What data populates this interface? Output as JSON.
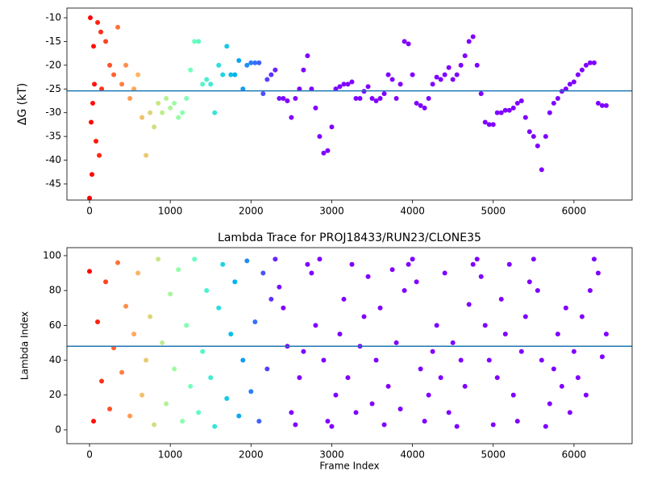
{
  "chart_data": [
    {
      "type": "scatter",
      "ylabel": "ΔG (kT)",
      "cmap": "rainbow_r",
      "clim": [
        0,
        2400
      ],
      "hline": -25.4,
      "hline_color": "#1f77b4",
      "xlim": [
        -280,
        6720
      ],
      "ylim": [
        -48.4,
        -7.96
      ],
      "xticks": [
        0,
        1000,
        2000,
        3000,
        4000,
        5000,
        6000
      ],
      "yticks": [
        -45,
        -40,
        -35,
        -30,
        -25,
        -20,
        -15,
        -10
      ],
      "x": [
        0,
        50,
        100,
        150,
        200,
        250,
        300,
        350,
        400,
        450,
        500,
        550,
        600,
        650,
        700,
        750,
        800,
        850,
        900,
        950,
        1000,
        1050,
        1100,
        1150,
        1200,
        1250,
        1300,
        1350,
        1400,
        1450,
        1500,
        1550,
        1600,
        1650,
        1700,
        1750,
        1800,
        1850,
        1900,
        1950,
        2000,
        2050,
        2100,
        2150,
        2200,
        2250,
        2300,
        2350,
        2400,
        2450,
        2500,
        2550,
        2600,
        2650,
        2700,
        2750,
        2800,
        2850,
        2900,
        2950,
        3000,
        3050,
        3100,
        3150,
        3200,
        3250,
        3300,
        3350,
        3400,
        3450,
        3500,
        3550,
        3600,
        3650,
        3700,
        3750,
        3800,
        3850,
        3900,
        3950,
        4000,
        4050,
        4100,
        4150,
        4200,
        4250,
        4300,
        4350,
        4400,
        4450,
        4500,
        4550,
        4600,
        4650,
        4700,
        4750,
        4800,
        4850,
        4900,
        4950,
        5000,
        5050,
        5100,
        5150,
        5200,
        5250,
        5300,
        5350,
        5400,
        5450,
        5500,
        5550,
        5600,
        5650,
        5700,
        5750,
        5800,
        5850,
        5900,
        5950,
        6000,
        6050,
        6100,
        6150,
        6200,
        6250,
        6300,
        6350,
        6400,
        10,
        30,
        60,
        20,
        80,
        120,
        140,
        40
      ],
      "values": [
        -48,
        -16,
        -11,
        -25,
        -15,
        -20,
        -22,
        -12,
        -24,
        -20,
        -27,
        -25,
        -22,
        -31,
        -39,
        -30,
        -33,
        -28,
        -30,
        -27,
        -29,
        -28,
        -31,
        -30,
        -27,
        -21,
        -15,
        -15,
        -24,
        -23,
        -24,
        -30,
        -20,
        -22,
        -16,
        -22,
        -22,
        -19,
        -25,
        -20,
        -19.5,
        -19.5,
        -19.5,
        -26,
        -23,
        -22,
        -21,
        -27,
        -27,
        -27.5,
        -31,
        -27,
        -25,
        -21,
        -18,
        -25,
        -29,
        -35,
        -38.5,
        -38,
        -33,
        -25,
        -24.5,
        -24,
        -24,
        -23.5,
        -27,
        -27,
        -25.5,
        -24.5,
        -27,
        -27.5,
        -27,
        -26,
        -22,
        -23,
        -27,
        -24,
        -15,
        -15.5,
        -22,
        -28,
        -28.5,
        -29,
        -27,
        -24,
        -22.5,
        -23,
        -22,
        -20.5,
        -23,
        -22,
        -20,
        -18,
        -15,
        -14,
        -20,
        -26,
        -32,
        -32.5,
        -32.5,
        -30,
        -30,
        -29.5,
        -29.5,
        -29,
        -28,
        -27.5,
        -31,
        -34,
        -35,
        -37,
        -42,
        -35,
        -30,
        -28,
        -27,
        -25.5,
        -25,
        -24,
        -23.5,
        -22,
        -21,
        -20,
        -19.5,
        -19.5,
        -28,
        -28.5,
        -28.5,
        -10,
        -43,
        -24,
        -32,
        -36,
        -39,
        -13,
        -28
      ]
    },
    {
      "type": "scatter",
      "title": "Lambda Trace for PROJ18433/RUN23/CLONE35",
      "xlabel": "Frame Index",
      "ylabel": "Lambda Index",
      "cmap": "rainbow_r",
      "clim": [
        0,
        2400
      ],
      "hline": 48,
      "hline_color": "#1f77b4",
      "xlim": [
        -280,
        6720
      ],
      "ylim": [
        -7.9,
        104.6
      ],
      "xticks": [
        0,
        1000,
        2000,
        3000,
        4000,
        5000,
        6000
      ],
      "yticks": [
        0,
        20,
        40,
        60,
        80,
        100
      ],
      "x": [
        0,
        50,
        100,
        150,
        200,
        250,
        300,
        350,
        400,
        450,
        500,
        550,
        600,
        650,
        700,
        750,
        800,
        850,
        900,
        950,
        1000,
        1050,
        1100,
        1150,
        1200,
        1250,
        1300,
        1350,
        1400,
        1450,
        1500,
        1550,
        1600,
        1650,
        1700,
        1750,
        1800,
        1850,
        1900,
        1950,
        2000,
        2050,
        2100,
        2150,
        2200,
        2250,
        2300,
        2350,
        2400,
        2450,
        2500,
        2550,
        2600,
        2650,
        2700,
        2750,
        2800,
        2850,
        2900,
        2950,
        3000,
        3050,
        3100,
        3150,
        3200,
        3250,
        3300,
        3350,
        3400,
        3450,
        3500,
        3550,
        3600,
        3650,
        3700,
        3750,
        3800,
        3850,
        3900,
        3950,
        4000,
        4050,
        4100,
        4150,
        4200,
        4250,
        4300,
        4350,
        4400,
        4450,
        4500,
        4550,
        4600,
        4650,
        4700,
        4750,
        4800,
        4850,
        4900,
        4950,
        5000,
        5050,
        5100,
        5150,
        5200,
        5250,
        5300,
        5350,
        5400,
        5450,
        5500,
        5550,
        5600,
        5650,
        5700,
        5750,
        5800,
        5850,
        5900,
        5950,
        6000,
        6050,
        6100,
        6150,
        6200,
        6250,
        6300,
        6350,
        6400
      ],
      "values": [
        91,
        5,
        62,
        28,
        85,
        12,
        47,
        96,
        33,
        71,
        8,
        55,
        90,
        20,
        40,
        65,
        3,
        98,
        50,
        15,
        78,
        35,
        92,
        5,
        60,
        25,
        98,
        10,
        45,
        80,
        30,
        2,
        70,
        95,
        18,
        55,
        85,
        8,
        40,
        97,
        22,
        62,
        5,
        90,
        35,
        75,
        98,
        82,
        70,
        48,
        10,
        3,
        30,
        45,
        95,
        90,
        60,
        98,
        40,
        5,
        2,
        20,
        55,
        75,
        30,
        95,
        10,
        48,
        65,
        88,
        15,
        40,
        70,
        3,
        25,
        92,
        50,
        12,
        80,
        95,
        98,
        85,
        35,
        5,
        20,
        45,
        60,
        30,
        90,
        10,
        50,
        2,
        40,
        25,
        72,
        95,
        98,
        88,
        60,
        40,
        3,
        30,
        75,
        55,
        95,
        20,
        5,
        45,
        65,
        85,
        98,
        80,
        40,
        2,
        15,
        35,
        55,
        25,
        70,
        10,
        45,
        30,
        65,
        20,
        80,
        98,
        90,
        42,
        55
      ]
    }
  ]
}
